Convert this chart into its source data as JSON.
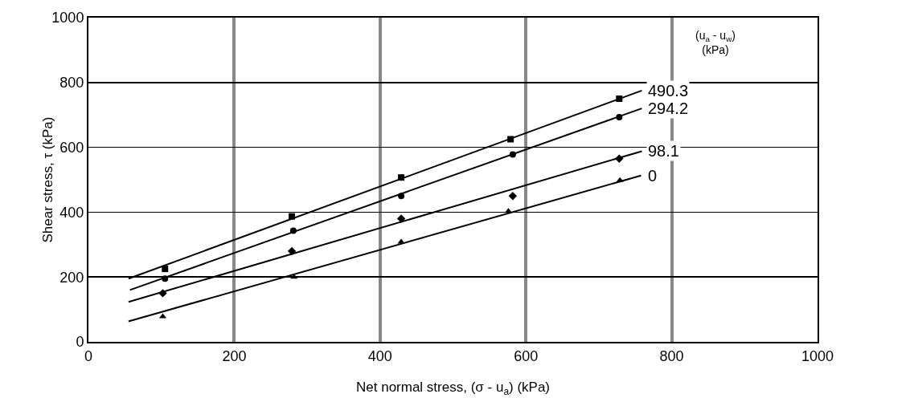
{
  "chart_data": {
    "type": "scatter",
    "xlabel": "Net normal stress, (σ - u$_{a}$) (kPa)",
    "ylabel": "Shear stress, τ (kPa)",
    "legend_title": "(u$_{a}$ - u$_{w}$)\n(kPa)",
    "xlim": [
      0,
      1000
    ],
    "ylim": [
      0,
      1000
    ],
    "xticks": [
      0,
      200,
      400,
      600,
      800,
      1000
    ],
    "yticks": [
      0,
      200,
      400,
      600,
      800,
      1000
    ],
    "grid": true,
    "legend": false,
    "series": [
      {
        "marker": "square",
        "color": "#000000",
        "x": [
          105,
          279,
          429,
          579,
          728
        ],
        "values": [
          225,
          387,
          507,
          625,
          750
        ]
      },
      {
        "marker": "circle",
        "color": "#000000",
        "x": [
          105,
          281,
          429,
          582,
          728
        ],
        "values": [
          195,
          343,
          450,
          578,
          693
        ]
      },
      {
        "marker": "diamond",
        "color": "#000000",
        "x": [
          102,
          279,
          429,
          582,
          728
        ],
        "values": [
          150,
          280,
          380,
          450,
          565
        ]
      },
      {
        "marker": "triangle",
        "color": "#000000",
        "x": [
          102,
          282,
          429,
          576,
          729
        ],
        "values": [
          78,
          200,
          308,
          403,
          498
        ]
      },
      {
        "type": "line",
        "name": "490.3",
        "color": "#000000",
        "marker": "none",
        "line_style": "solid",
        "x": [
          55,
          759
        ],
        "values": [
          195,
          775
        ]
      },
      {
        "type": "line",
        "name": "294.2",
        "color": "#000000",
        "marker": "none",
        "line_style": "solid",
        "x": [
          57,
          759
        ],
        "values": [
          160,
          720
        ]
      },
      {
        "type": "line",
        "name": "98.1",
        "color": "#000000",
        "marker": "none",
        "line_style": "solid",
        "x": [
          55,
          759
        ],
        "values": [
          123,
          588
        ]
      },
      {
        "type": "line",
        "name": "0",
        "color": "#000000",
        "marker": "none",
        "line_style": "solid",
        "x": [
          55,
          758
        ],
        "values": [
          63,
          513
        ]
      }
    ]
  }
}
